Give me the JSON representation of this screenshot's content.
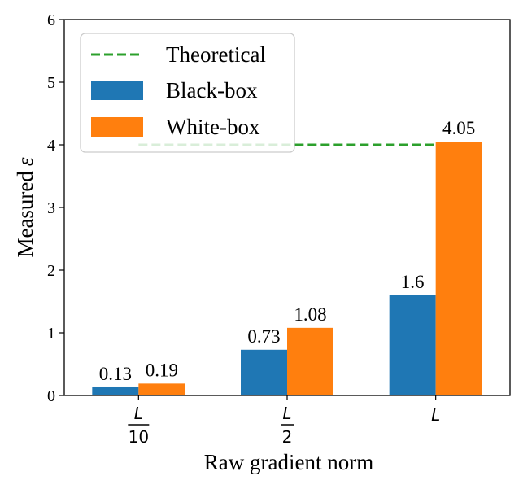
{
  "chart_data": {
    "type": "bar",
    "title": "",
    "xlabel": "Raw gradient norm",
    "ylabel_text": "Measured",
    "ylabel_symbol": "ε",
    "ylim": [
      0,
      6
    ],
    "yticks": [
      "0",
      "1",
      "2",
      "3",
      "4",
      "5",
      "6"
    ],
    "categories": [
      {
        "num": "L",
        "den": "10"
      },
      {
        "num": "L",
        "den": "2"
      },
      {
        "num": "L",
        "den": ""
      }
    ],
    "series": [
      {
        "name": "Black-box",
        "color": "#1f77b4",
        "values": [
          0.13,
          0.73,
          1.6
        ],
        "labels": [
          "0.13",
          "0.73",
          "1.6"
        ]
      },
      {
        "name": "White-box",
        "color": "#ff7f0e",
        "values": [
          0.19,
          1.08,
          4.05
        ],
        "labels": [
          "0.19",
          "1.08",
          "4.05"
        ]
      }
    ],
    "reference_line": {
      "name": "Theoretical",
      "value": 4,
      "color": "#2ca02c",
      "style": "dashed"
    },
    "legend_position": "top-left",
    "grid": false
  }
}
